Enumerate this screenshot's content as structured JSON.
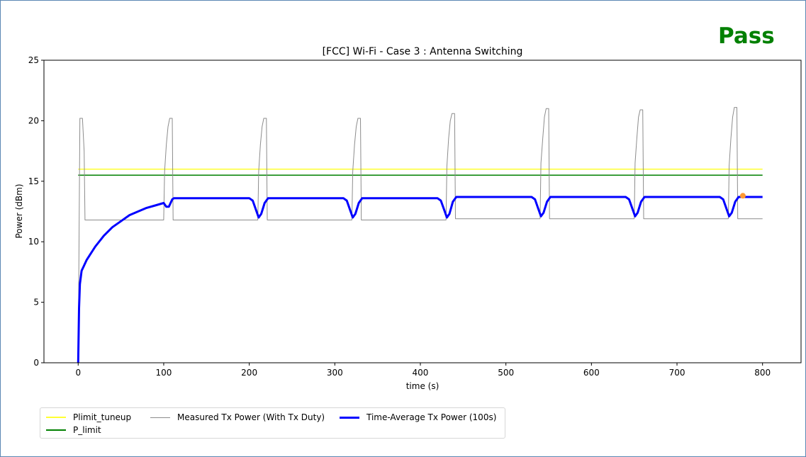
{
  "status": {
    "text": "Pass",
    "color": "#008000"
  },
  "chart_data": {
    "type": "line",
    "title": "[FCC] Wi-Fi - Case 3 : Antenna Switching",
    "xlabel": "time (s)",
    "ylabel": "Power (dBm)",
    "xlim": [
      -40,
      845
    ],
    "ylim": [
      0,
      25
    ],
    "xticks": [
      0,
      100,
      200,
      300,
      400,
      500,
      600,
      700,
      800
    ],
    "yticks": [
      0,
      5,
      10,
      15,
      20,
      25
    ],
    "xtick_labels": [
      "0",
      "100",
      "200",
      "300",
      "400",
      "500",
      "600",
      "700",
      "800"
    ],
    "ytick_labels": [
      "0",
      "5",
      "10",
      "15",
      "20",
      "25"
    ],
    "grid": false,
    "legend_position": "below-left",
    "series": [
      {
        "name": "Plimit_tuneup",
        "color": "#ffff33",
        "width": 1.5,
        "x": [
          0,
          800
        ],
        "y": [
          16.0,
          16.0
        ]
      },
      {
        "name": "P_limit",
        "color": "#008000",
        "width": 1.5,
        "x": [
          0,
          800
        ],
        "y": [
          15.5,
          15.5
        ]
      },
      {
        "name": "Measured Tx Power (With Tx Duty)",
        "color": "#8c8c8c",
        "width": 1,
        "x": [
          0,
          2,
          5,
          7,
          8,
          100,
          101,
          103,
          105,
          107,
          110,
          111,
          210,
          211,
          213,
          215,
          217,
          220,
          221,
          320,
          321,
          323,
          325,
          327,
          330,
          331,
          430,
          431,
          433,
          435,
          437,
          440,
          441,
          540,
          541,
          543,
          545,
          547,
          550,
          551,
          650,
          651,
          653,
          655,
          657,
          660,
          661,
          760,
          761,
          763,
          765,
          767,
          770,
          771,
          800
        ],
        "y": [
          0,
          20.2,
          20.2,
          17.5,
          11.8,
          11.8,
          15.8,
          18.0,
          19.5,
          20.2,
          20.2,
          11.8,
          11.8,
          15.8,
          18.0,
          19.5,
          20.2,
          20.2,
          11.8,
          11.8,
          15.8,
          18.0,
          19.5,
          20.2,
          20.2,
          11.8,
          11.8,
          16.2,
          18.5,
          20.0,
          20.6,
          20.6,
          11.9,
          11.9,
          16.5,
          18.5,
          20.3,
          21.0,
          21.0,
          11.9,
          11.9,
          16.5,
          18.5,
          20.3,
          20.9,
          20.9,
          11.9,
          11.9,
          16.3,
          18.5,
          20.3,
          21.1,
          21.1,
          11.9,
          11.9
        ]
      },
      {
        "name": "Time-Average Tx Power (100s)",
        "color": "#0000ff",
        "width": 3,
        "x": [
          0,
          1,
          2,
          4,
          6,
          10,
          20,
          30,
          40,
          50,
          60,
          70,
          80,
          90,
          100,
          103,
          106,
          110,
          112,
          200,
          204,
          208,
          211,
          214,
          218,
          222,
          310,
          314,
          318,
          321,
          324,
          328,
          332,
          400,
          420,
          424,
          428,
          431,
          434,
          438,
          442,
          530,
          534,
          538,
          541,
          544,
          548,
          552,
          640,
          644,
          648,
          651,
          654,
          658,
          662,
          750,
          754,
          758,
          761,
          764,
          768,
          772,
          800
        ],
        "y": [
          0,
          4.5,
          6.5,
          7.6,
          7.9,
          8.5,
          9.6,
          10.5,
          11.2,
          11.7,
          12.2,
          12.5,
          12.8,
          13.0,
          13.2,
          12.9,
          12.9,
          13.5,
          13.6,
          13.6,
          13.4,
          12.6,
          12.0,
          12.3,
          13.2,
          13.6,
          13.6,
          13.4,
          12.6,
          12.0,
          12.3,
          13.2,
          13.6,
          13.6,
          13.6,
          13.4,
          12.6,
          12.0,
          12.3,
          13.3,
          13.7,
          13.7,
          13.5,
          12.7,
          12.1,
          12.4,
          13.3,
          13.7,
          13.7,
          13.5,
          12.7,
          12.1,
          12.4,
          13.3,
          13.7,
          13.7,
          13.5,
          12.7,
          12.1,
          12.4,
          13.3,
          13.7,
          13.7
        ]
      }
    ],
    "marker": {
      "x": 777,
      "y": 13.8,
      "color": "#ff9933"
    }
  }
}
